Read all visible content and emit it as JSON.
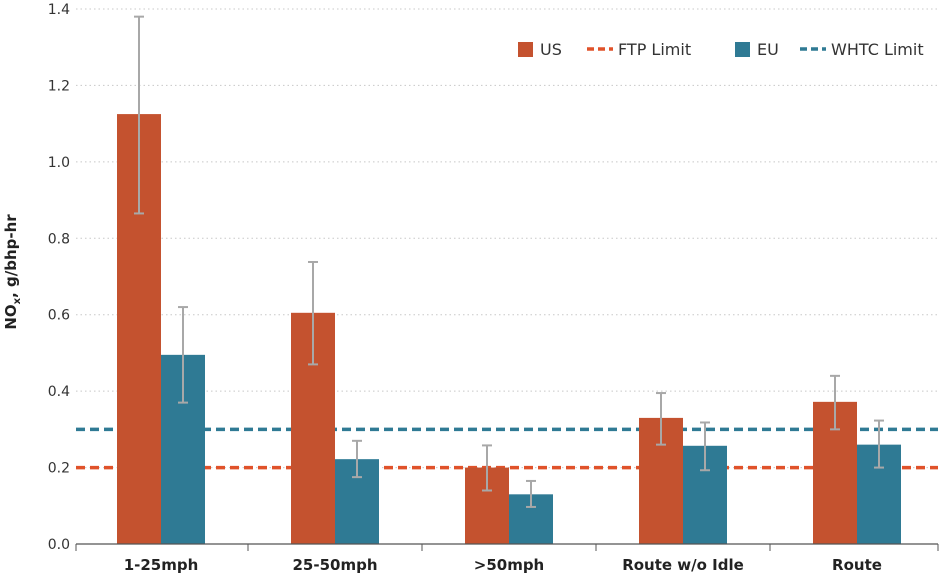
{
  "chart_data": {
    "type": "bar",
    "ylabel_main": "NO",
    "ylabel_sub": "x",
    "ylabel_rest": ", g/bhp-hr",
    "ylim": [
      0,
      1.4
    ],
    "yticks": [
      0.0,
      0.2,
      0.4,
      0.6,
      0.8,
      1.0,
      1.2,
      1.4
    ],
    "ytick_labels": [
      "0.0",
      "0.2",
      "0.4",
      "0.6",
      "0.8",
      "1.0",
      "1.2",
      "1.4"
    ],
    "categories": [
      "1-25mph",
      "25-50mph",
      ">50mph",
      "Route w/o Idle",
      "Route"
    ],
    "grid": "horizontal-dotted",
    "legend_position": "top-right",
    "series": [
      {
        "name": "US",
        "color": "#c4522f",
        "values": [
          1.125,
          0.605,
          0.2,
          0.33,
          0.372
        ],
        "error_low": [
          0.865,
          0.47,
          0.14,
          0.26,
          0.3
        ],
        "error_high": [
          1.38,
          0.738,
          0.258,
          0.395,
          0.44
        ]
      },
      {
        "name": "EU",
        "color": "#2f7a94",
        "values": [
          0.495,
          0.222,
          0.13,
          0.257,
          0.26
        ],
        "error_low": [
          0.37,
          0.175,
          0.097,
          0.193,
          0.2
        ],
        "error_high": [
          0.62,
          0.27,
          0.165,
          0.318,
          0.323
        ]
      }
    ],
    "reference_lines": [
      {
        "name": "FTP Limit",
        "value": 0.2,
        "color": "#e0522a",
        "style": "dashed"
      },
      {
        "name": "WHTC Limit",
        "value": 0.3,
        "color": "#2f7a94",
        "style": "dashed"
      }
    ],
    "legend": [
      {
        "label": "US",
        "kind": "swatch",
        "color": "#c4522f"
      },
      {
        "label": "FTP Limit",
        "kind": "dash",
        "color": "#e0522a"
      },
      {
        "label": "EU",
        "kind": "swatch",
        "color": "#2f7a94"
      },
      {
        "label": "WHTC Limit",
        "kind": "dash",
        "color": "#2f7a94"
      }
    ],
    "error_bar_color": "#a8a8a8"
  }
}
